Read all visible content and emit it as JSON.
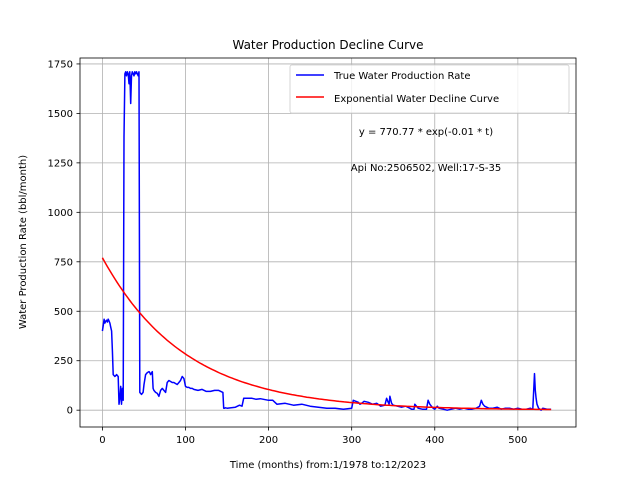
{
  "chart_data": {
    "type": "line",
    "title": "Water Production Decline Curve",
    "xlabel": "Time (months) from:1/1978 to:12/2023",
    "ylabel": "Water Production Rate (bbl/month)",
    "xlim": [
      -27,
      570
    ],
    "ylim": [
      -85,
      1780
    ],
    "xticks": [
      0,
      100,
      200,
      300,
      400,
      500
    ],
    "yticks": [
      0,
      250,
      500,
      750,
      1000,
      1250,
      1500,
      1750
    ],
    "grid": true,
    "legend_position": "top-right",
    "annotations": [
      "y = 770.77 * exp(-0.01 * t)",
      "Api No:2506502, Well:17-S-35"
    ],
    "series": [
      {
        "name": "True Water Production Rate",
        "color": "#0000ff",
        "x": [
          0,
          1,
          2,
          3,
          4,
          5,
          6,
          7,
          8,
          9,
          10,
          11,
          12,
          13,
          14,
          15,
          16,
          17,
          18,
          19,
          20,
          21,
          22,
          23,
          24,
          25,
          26,
          27,
          28,
          29,
          30,
          31,
          32,
          33,
          34,
          35,
          36,
          37,
          38,
          39,
          40,
          41,
          42,
          43,
          44,
          45,
          46,
          47,
          48,
          49,
          50,
          52,
          54,
          56,
          57,
          58,
          60,
          61,
          62,
          64,
          66,
          68,
          70,
          72,
          74,
          76,
          78,
          80,
          82,
          84,
          86,
          88,
          90,
          92,
          94,
          96,
          98,
          100,
          102,
          104,
          106,
          108,
          110,
          115,
          120,
          125,
          130,
          135,
          140,
          145,
          146,
          147,
          148,
          150,
          160,
          165,
          168,
          170,
          180,
          185,
          190,
          200,
          205,
          210,
          220,
          230,
          240,
          250,
          260,
          270,
          280,
          290,
          300,
          302,
          305,
          308,
          310,
          312,
          315,
          320,
          325,
          330,
          335,
          340,
          342,
          344,
          345,
          346,
          348,
          350,
          355,
          360,
          365,
          370,
          372,
          374,
          375,
          376,
          378,
          380,
          385,
          390,
          392,
          394,
          396,
          398,
          400,
          403,
          405,
          410,
          415,
          420,
          425,
          430,
          435,
          440,
          445,
          450,
          452,
          454,
          456,
          458,
          460,
          465,
          470,
          475,
          480,
          485,
          490,
          495,
          500,
          505,
          510,
          515,
          517,
          518,
          519,
          520,
          521,
          522,
          523,
          525,
          528,
          530,
          535,
          540
        ],
        "y": [
          400,
          430,
          460,
          440,
          450,
          455,
          445,
          460,
          450,
          440,
          420,
          400,
          300,
          180,
          175,
          170,
          175,
          180,
          175,
          170,
          30,
          60,
          120,
          30,
          110,
          50,
          1380,
          1700,
          1710,
          1690,
          1710,
          1700,
          1650,
          1710,
          1550,
          1690,
          1710,
          1700,
          1690,
          1710,
          1700,
          1710,
          1700,
          1690,
          1710,
          90,
          85,
          80,
          85,
          90,
          130,
          180,
          190,
          195,
          190,
          180,
          195,
          110,
          100,
          90,
          85,
          70,
          100,
          110,
          100,
          90,
          140,
          150,
          145,
          140,
          140,
          135,
          130,
          140,
          150,
          170,
          160,
          120,
          115,
          115,
          110,
          110,
          105,
          100,
          105,
          95,
          95,
          100,
          100,
          90,
          10,
          10,
          12,
          10,
          15,
          25,
          20,
          60,
          60,
          55,
          58,
          50,
          50,
          30,
          35,
          25,
          30,
          20,
          15,
          10,
          10,
          5,
          10,
          50,
          45,
          40,
          30,
          35,
          45,
          40,
          30,
          35,
          20,
          25,
          60,
          40,
          30,
          70,
          35,
          25,
          20,
          15,
          20,
          10,
          5,
          5,
          5,
          30,
          20,
          10,
          5,
          5,
          50,
          30,
          20,
          10,
          5,
          20,
          10,
          5,
          0,
          5,
          10,
          5,
          10,
          5,
          5,
          10,
          15,
          20,
          50,
          30,
          20,
          10,
          10,
          15,
          5,
          10,
          10,
          5,
          10,
          5,
          5,
          10,
          5,
          5,
          90,
          185,
          100,
          60,
          30,
          10,
          0,
          10,
          5,
          5
        ]
      },
      {
        "name": "Exponential Water Decline Curve",
        "color": "#ff0000",
        "function": "exp_decay",
        "a": 770.77,
        "b": 0.01,
        "t_range": [
          0,
          540
        ]
      }
    ]
  }
}
